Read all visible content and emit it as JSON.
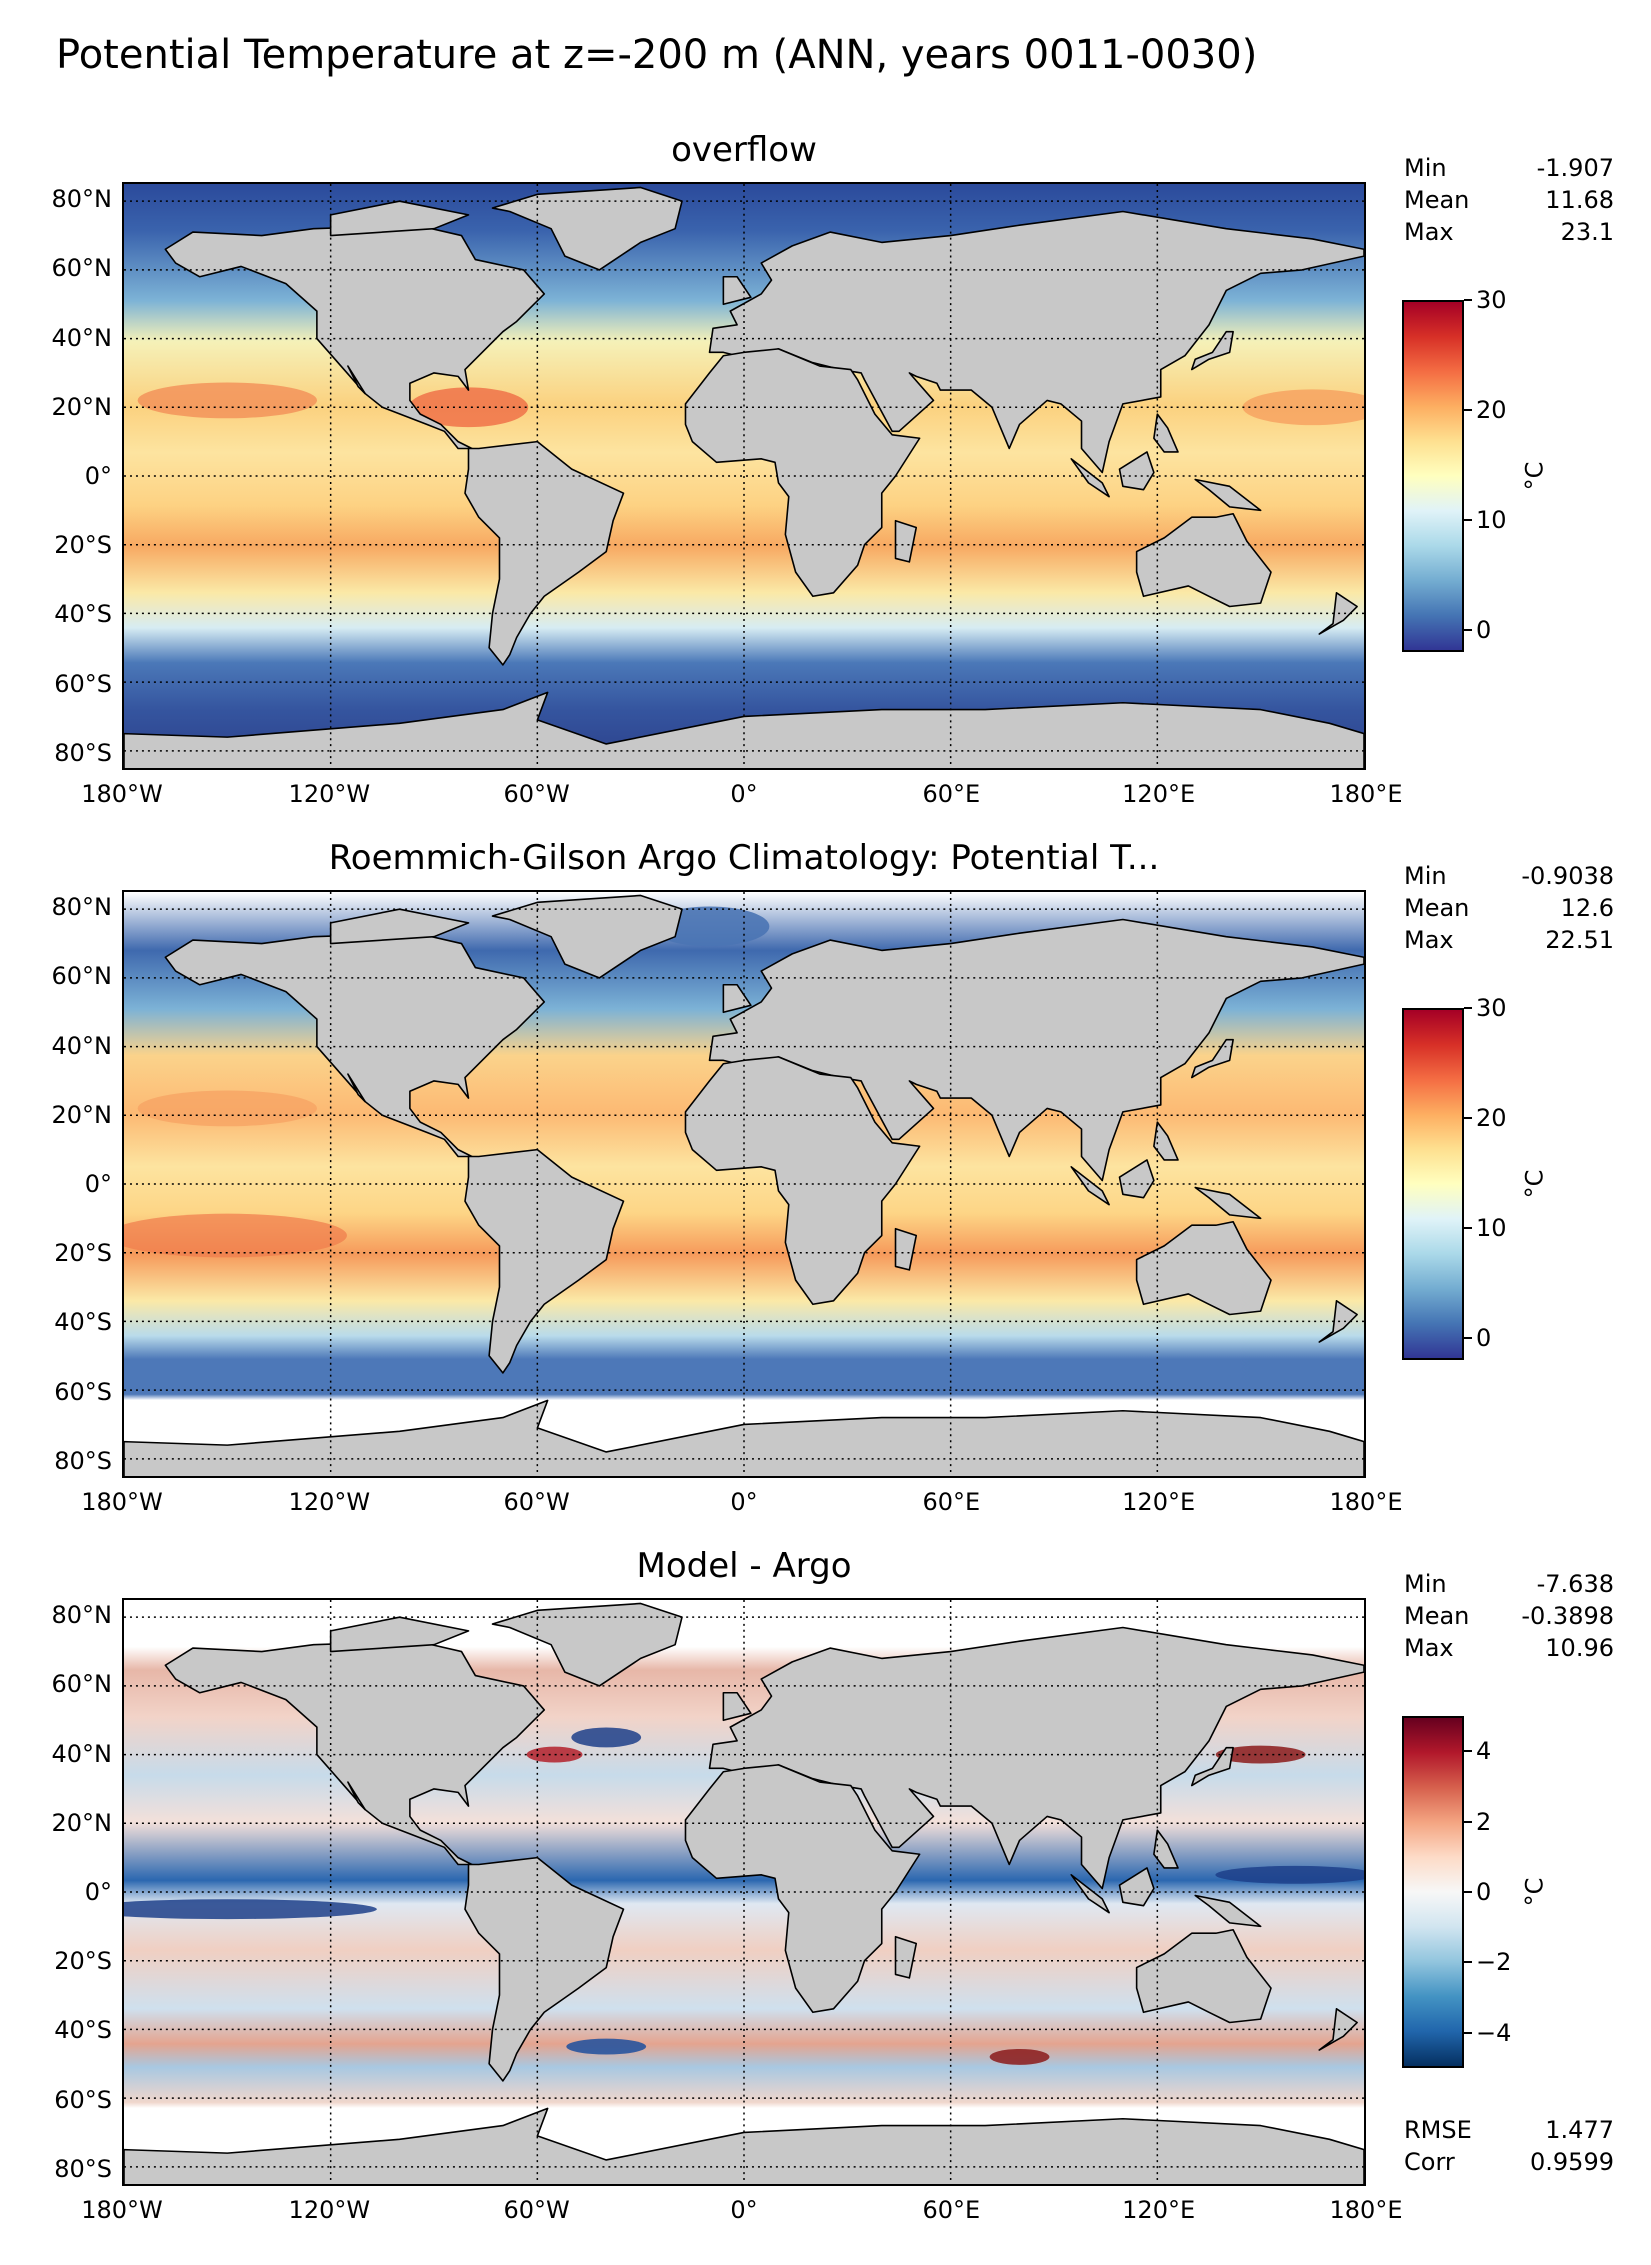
{
  "suptitle": "Potential Temperature at z=-200 m (ANN, years 0011-0030)",
  "lat_ticks": [
    "80°N",
    "60°N",
    "40°N",
    "20°N",
    "0°",
    "20°S",
    "40°S",
    "60°S",
    "80°S"
  ],
  "lon_ticks": [
    "180°W",
    "120°W",
    "60°W",
    "0°",
    "60°E",
    "120°E",
    "180°E"
  ],
  "panels": [
    {
      "title": "overflow",
      "stats": [
        {
          "label": "Min",
          "value": "-1.907"
        },
        {
          "label": "Mean",
          "value": "11.68"
        },
        {
          "label": "Max",
          "value": "23.1"
        }
      ],
      "colorbar": {
        "label": "°C",
        "ticks": [
          "30",
          "20",
          "10",
          "0"
        ],
        "range": [
          -2,
          30
        ],
        "cmap": "RdYlBu_r"
      }
    },
    {
      "title": "Roemmich-Gilson Argo Climatology: Potential T...",
      "stats": [
        {
          "label": "Min",
          "value": "-0.9038"
        },
        {
          "label": "Mean",
          "value": "12.6"
        },
        {
          "label": "Max",
          "value": "22.51"
        }
      ],
      "colorbar": {
        "label": "°C",
        "ticks": [
          "30",
          "20",
          "10",
          "0"
        ],
        "range": [
          -2,
          30
        ],
        "cmap": "RdYlBu_r"
      }
    },
    {
      "title": "Model - Argo",
      "stats": [
        {
          "label": "Min",
          "value": "-7.638"
        },
        {
          "label": "Mean",
          "value": "-0.3898"
        },
        {
          "label": "Max",
          "value": "10.96"
        }
      ],
      "extra_stats": [
        {
          "label": "RMSE",
          "value": "1.477"
        },
        {
          "label": "Corr",
          "value": "0.9599"
        }
      ],
      "colorbar": {
        "label": "°C",
        "ticks": [
          "4",
          "2",
          "0",
          "−2",
          "−4"
        ],
        "range": [
          -5,
          5
        ],
        "cmap": "RdBu_r"
      }
    }
  ],
  "colors": {
    "land": "#c8c8c8",
    "coast": "#000000",
    "nodata": "#ffffff"
  }
}
